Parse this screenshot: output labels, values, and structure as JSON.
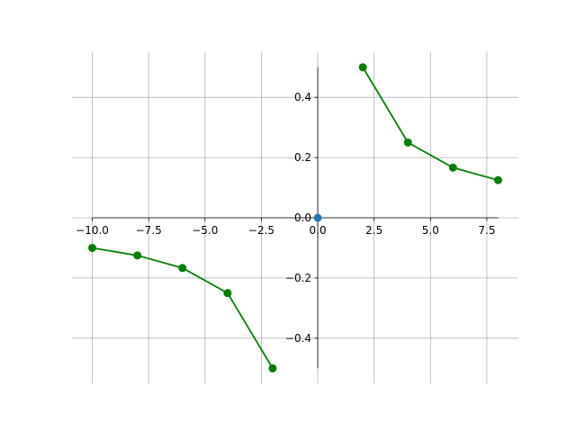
{
  "chart_data": {
    "type": "line",
    "series": [
      {
        "color": "#008000",
        "marker": true,
        "line": true,
        "x": [
          -10,
          -8,
          -6,
          -4,
          -2,
          0,
          2,
          4,
          6,
          8
        ],
        "values": [
          -0.1,
          -0.125,
          -0.1667,
          -0.25,
          -0.5,
          null,
          0.5,
          0.25,
          0.1667,
          0.125
        ]
      },
      {
        "color": "#1f77b4",
        "marker": true,
        "line": false,
        "x": [
          0
        ],
        "values": [
          0
        ]
      }
    ],
    "xlim": [
      -10.9,
      8.9
    ],
    "ylim": [
      -0.55,
      0.55
    ],
    "xticks": [
      {
        "value": -10,
        "label": "−10.0"
      },
      {
        "value": -7.5,
        "label": "−7.5"
      },
      {
        "value": -5,
        "label": "−5.0"
      },
      {
        "value": -2.5,
        "label": "−2.5"
      },
      {
        "value": 0,
        "label": "0.0"
      },
      2.5,
      {
        "value": 5,
        "label": "5.0"
      },
      7.5
    ],
    "yticks": [
      {
        "value": -0.4,
        "label": "−0.4"
      },
      {
        "value": -0.2,
        "label": "−0.2"
      },
      {
        "value": 0,
        "label": "0.0"
      },
      0.2,
      0.4
    ],
    "grid": true
  }
}
